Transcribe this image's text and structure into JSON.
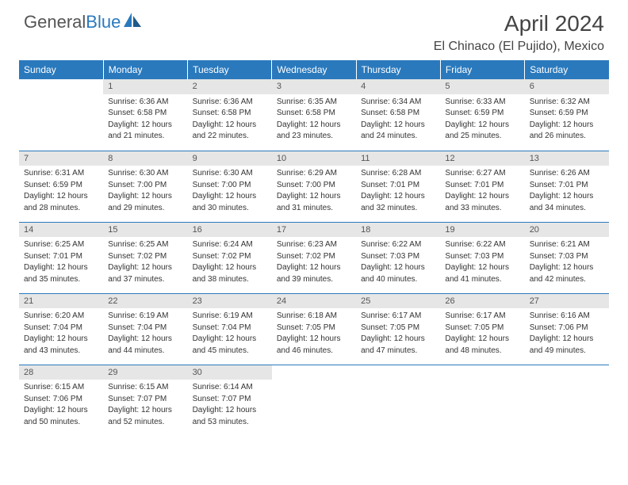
{
  "brand": {
    "part1": "General",
    "part2": "Blue"
  },
  "title": "April 2024",
  "location": "El Chinaco (El Pujido), Mexico",
  "colors": {
    "header_bg": "#2a79bd",
    "header_text": "#ffffff",
    "daynum_bg": "#e6e6e6",
    "row_border": "#2a79bd",
    "body_text": "#333333"
  },
  "typography": {
    "title_fontsize": 28,
    "location_fontsize": 16,
    "dayheader_fontsize": 12,
    "cell_fontsize": 10
  },
  "day_headers": [
    "Sunday",
    "Monday",
    "Tuesday",
    "Wednesday",
    "Thursday",
    "Friday",
    "Saturday"
  ],
  "weeks": [
    [
      null,
      {
        "n": "1",
        "sunrise": "Sunrise: 6:36 AM",
        "sunset": "Sunset: 6:58 PM",
        "day1": "Daylight: 12 hours",
        "day2": "and 21 minutes."
      },
      {
        "n": "2",
        "sunrise": "Sunrise: 6:36 AM",
        "sunset": "Sunset: 6:58 PM",
        "day1": "Daylight: 12 hours",
        "day2": "and 22 minutes."
      },
      {
        "n": "3",
        "sunrise": "Sunrise: 6:35 AM",
        "sunset": "Sunset: 6:58 PM",
        "day1": "Daylight: 12 hours",
        "day2": "and 23 minutes."
      },
      {
        "n": "4",
        "sunrise": "Sunrise: 6:34 AM",
        "sunset": "Sunset: 6:58 PM",
        "day1": "Daylight: 12 hours",
        "day2": "and 24 minutes."
      },
      {
        "n": "5",
        "sunrise": "Sunrise: 6:33 AM",
        "sunset": "Sunset: 6:59 PM",
        "day1": "Daylight: 12 hours",
        "day2": "and 25 minutes."
      },
      {
        "n": "6",
        "sunrise": "Sunrise: 6:32 AM",
        "sunset": "Sunset: 6:59 PM",
        "day1": "Daylight: 12 hours",
        "day2": "and 26 minutes."
      }
    ],
    [
      {
        "n": "7",
        "sunrise": "Sunrise: 6:31 AM",
        "sunset": "Sunset: 6:59 PM",
        "day1": "Daylight: 12 hours",
        "day2": "and 28 minutes."
      },
      {
        "n": "8",
        "sunrise": "Sunrise: 6:30 AM",
        "sunset": "Sunset: 7:00 PM",
        "day1": "Daylight: 12 hours",
        "day2": "and 29 minutes."
      },
      {
        "n": "9",
        "sunrise": "Sunrise: 6:30 AM",
        "sunset": "Sunset: 7:00 PM",
        "day1": "Daylight: 12 hours",
        "day2": "and 30 minutes."
      },
      {
        "n": "10",
        "sunrise": "Sunrise: 6:29 AM",
        "sunset": "Sunset: 7:00 PM",
        "day1": "Daylight: 12 hours",
        "day2": "and 31 minutes."
      },
      {
        "n": "11",
        "sunrise": "Sunrise: 6:28 AM",
        "sunset": "Sunset: 7:01 PM",
        "day1": "Daylight: 12 hours",
        "day2": "and 32 minutes."
      },
      {
        "n": "12",
        "sunrise": "Sunrise: 6:27 AM",
        "sunset": "Sunset: 7:01 PM",
        "day1": "Daylight: 12 hours",
        "day2": "and 33 minutes."
      },
      {
        "n": "13",
        "sunrise": "Sunrise: 6:26 AM",
        "sunset": "Sunset: 7:01 PM",
        "day1": "Daylight: 12 hours",
        "day2": "and 34 minutes."
      }
    ],
    [
      {
        "n": "14",
        "sunrise": "Sunrise: 6:25 AM",
        "sunset": "Sunset: 7:01 PM",
        "day1": "Daylight: 12 hours",
        "day2": "and 35 minutes."
      },
      {
        "n": "15",
        "sunrise": "Sunrise: 6:25 AM",
        "sunset": "Sunset: 7:02 PM",
        "day1": "Daylight: 12 hours",
        "day2": "and 37 minutes."
      },
      {
        "n": "16",
        "sunrise": "Sunrise: 6:24 AM",
        "sunset": "Sunset: 7:02 PM",
        "day1": "Daylight: 12 hours",
        "day2": "and 38 minutes."
      },
      {
        "n": "17",
        "sunrise": "Sunrise: 6:23 AM",
        "sunset": "Sunset: 7:02 PM",
        "day1": "Daylight: 12 hours",
        "day2": "and 39 minutes."
      },
      {
        "n": "18",
        "sunrise": "Sunrise: 6:22 AM",
        "sunset": "Sunset: 7:03 PM",
        "day1": "Daylight: 12 hours",
        "day2": "and 40 minutes."
      },
      {
        "n": "19",
        "sunrise": "Sunrise: 6:22 AM",
        "sunset": "Sunset: 7:03 PM",
        "day1": "Daylight: 12 hours",
        "day2": "and 41 minutes."
      },
      {
        "n": "20",
        "sunrise": "Sunrise: 6:21 AM",
        "sunset": "Sunset: 7:03 PM",
        "day1": "Daylight: 12 hours",
        "day2": "and 42 minutes."
      }
    ],
    [
      {
        "n": "21",
        "sunrise": "Sunrise: 6:20 AM",
        "sunset": "Sunset: 7:04 PM",
        "day1": "Daylight: 12 hours",
        "day2": "and 43 minutes."
      },
      {
        "n": "22",
        "sunrise": "Sunrise: 6:19 AM",
        "sunset": "Sunset: 7:04 PM",
        "day1": "Daylight: 12 hours",
        "day2": "and 44 minutes."
      },
      {
        "n": "23",
        "sunrise": "Sunrise: 6:19 AM",
        "sunset": "Sunset: 7:04 PM",
        "day1": "Daylight: 12 hours",
        "day2": "and 45 minutes."
      },
      {
        "n": "24",
        "sunrise": "Sunrise: 6:18 AM",
        "sunset": "Sunset: 7:05 PM",
        "day1": "Daylight: 12 hours",
        "day2": "and 46 minutes."
      },
      {
        "n": "25",
        "sunrise": "Sunrise: 6:17 AM",
        "sunset": "Sunset: 7:05 PM",
        "day1": "Daylight: 12 hours",
        "day2": "and 47 minutes."
      },
      {
        "n": "26",
        "sunrise": "Sunrise: 6:17 AM",
        "sunset": "Sunset: 7:05 PM",
        "day1": "Daylight: 12 hours",
        "day2": "and 48 minutes."
      },
      {
        "n": "27",
        "sunrise": "Sunrise: 6:16 AM",
        "sunset": "Sunset: 7:06 PM",
        "day1": "Daylight: 12 hours",
        "day2": "and 49 minutes."
      }
    ],
    [
      {
        "n": "28",
        "sunrise": "Sunrise: 6:15 AM",
        "sunset": "Sunset: 7:06 PM",
        "day1": "Daylight: 12 hours",
        "day2": "and 50 minutes."
      },
      {
        "n": "29",
        "sunrise": "Sunrise: 6:15 AM",
        "sunset": "Sunset: 7:07 PM",
        "day1": "Daylight: 12 hours",
        "day2": "and 52 minutes."
      },
      {
        "n": "30",
        "sunrise": "Sunrise: 6:14 AM",
        "sunset": "Sunset: 7:07 PM",
        "day1": "Daylight: 12 hours",
        "day2": "and 53 minutes."
      },
      null,
      null,
      null,
      null
    ]
  ]
}
